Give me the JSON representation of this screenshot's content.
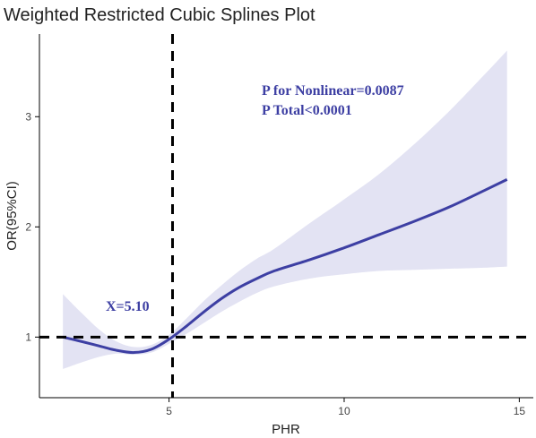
{
  "chart_data": {
    "type": "line",
    "title": "Weighted Restricted Cubic Splines Plot",
    "xlabel": "PHR",
    "ylabel": "OR(95%CI)",
    "xlim": [
      1.3,
      15.4
    ],
    "ylim": [
      0.45,
      3.75
    ],
    "xticks": [
      5,
      10,
      15
    ],
    "yticks": [
      1,
      2,
      3
    ],
    "grid": false,
    "reference_lines": {
      "x": 5.1,
      "y": 1
    },
    "colors": {
      "line": "#3d3fa3",
      "ci_band": "#e3e3f3",
      "annotation": "#3d3fa3",
      "reference": "#000000"
    },
    "annotations": {
      "p_nonlinear": "P for Nonlinear=0.0087",
      "p_total": "P Total<0.0001",
      "cutoff": "X=5.10"
    },
    "series": [
      {
        "x": [
          1.97,
          2.5,
          3.0,
          3.5,
          4.0,
          4.5,
          5.0,
          5.5,
          6.0,
          6.5,
          7.0,
          7.5,
          8.0,
          9.0,
          10.0,
          11.0,
          12.0,
          13.0,
          14.0,
          14.65
        ],
        "y": [
          1.0,
          0.96,
          0.92,
          0.88,
          0.86,
          0.89,
          0.98,
          1.1,
          1.23,
          1.35,
          1.45,
          1.53,
          1.6,
          1.7,
          1.81,
          1.93,
          2.05,
          2.18,
          2.33,
          2.43
        ],
        "lower": [
          0.71,
          0.77,
          0.82,
          0.85,
          0.84,
          0.86,
          0.94,
          1.03,
          1.13,
          1.23,
          1.32,
          1.4,
          1.46,
          1.53,
          1.57,
          1.6,
          1.61,
          1.62,
          1.63,
          1.64
        ],
        "upper": [
          1.39,
          1.22,
          1.07,
          0.96,
          0.91,
          0.93,
          1.02,
          1.17,
          1.33,
          1.47,
          1.6,
          1.71,
          1.8,
          2.03,
          2.25,
          2.48,
          2.75,
          3.05,
          3.38,
          3.6
        ]
      }
    ]
  }
}
